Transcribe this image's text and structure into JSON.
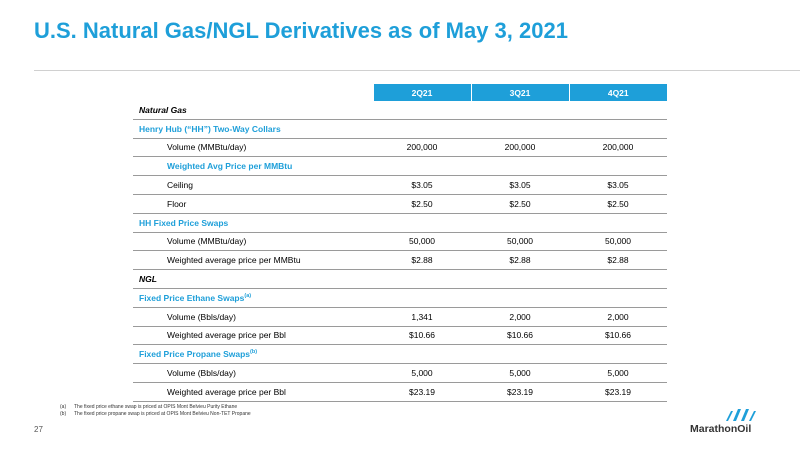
{
  "title": "U.S. Natural Gas/NGL Derivatives as of May 3, 2021",
  "columns": [
    "",
    "2Q21",
    "3Q21",
    "4Q21"
  ],
  "rows": [
    {
      "type": "section",
      "label": "Natural Gas",
      "sup": "",
      "values": [
        "",
        "",
        ""
      ]
    },
    {
      "type": "sub",
      "label": "Henry Hub (“HH”) Two-Way Collars",
      "sup": "",
      "values": [
        "",
        "",
        ""
      ]
    },
    {
      "type": "detail",
      "label": "Volume (MMBtu/day)",
      "sup": "",
      "values": [
        "200,000",
        "200,000",
        "200,000"
      ]
    },
    {
      "type": "subind",
      "label": "Weighted Avg Price per MMBtu",
      "sup": "",
      "values": [
        "",
        "",
        ""
      ]
    },
    {
      "type": "detail",
      "label": "Ceiling",
      "sup": "",
      "values": [
        "$3.05",
        "$3.05",
        "$3.05"
      ]
    },
    {
      "type": "detail",
      "label": "Floor",
      "sup": "",
      "values": [
        "$2.50",
        "$2.50",
        "$2.50"
      ]
    },
    {
      "type": "sub",
      "label": "HH Fixed Price Swaps",
      "sup": "",
      "values": [
        "",
        "",
        ""
      ]
    },
    {
      "type": "detail",
      "label": "Volume (MMBtu/day)",
      "sup": "",
      "values": [
        "50,000",
        "50,000",
        "50,000"
      ]
    },
    {
      "type": "detail",
      "label": "Weighted average price per MMBtu",
      "sup": "",
      "values": [
        "$2.88",
        "$2.88",
        "$2.88"
      ]
    },
    {
      "type": "section",
      "label": "NGL",
      "sup": "",
      "values": [
        "",
        "",
        ""
      ]
    },
    {
      "type": "sub",
      "label": "Fixed Price Ethane Swaps",
      "sup": "(a)",
      "values": [
        "",
        "",
        ""
      ]
    },
    {
      "type": "detail",
      "label": "Volume (Bbls/day)",
      "sup": "",
      "values": [
        "1,341",
        "2,000",
        "2,000"
      ]
    },
    {
      "type": "detail",
      "label": "Weighted average price per Bbl",
      "sup": "",
      "values": [
        "$10.66",
        "$10.66",
        "$10.66"
      ]
    },
    {
      "type": "sub",
      "label": "Fixed Price Propane Swaps",
      "sup": "(b)",
      "values": [
        "",
        "",
        ""
      ]
    },
    {
      "type": "detail",
      "label": "Volume (Bbls/day)",
      "sup": "",
      "values": [
        "5,000",
        "5,000",
        "5,000"
      ]
    },
    {
      "type": "detail",
      "label": "Weighted average price per Bbl",
      "sup": "",
      "values": [
        "$23.19",
        "$23.19",
        "$23.19"
      ]
    }
  ],
  "footnotes": [
    {
      "marker": "(a)",
      "text": "The fixed price ethane swap is priced at OPIS Mont Belvieu Purity Ethane"
    },
    {
      "marker": "(b)",
      "text": "The fixed price propane swap is priced at OPIS Mont Belvieu Non-TET Propane"
    }
  ],
  "page_number": "27",
  "logo_text": "MarathonOil",
  "colors": {
    "accent": "#1e9fd9",
    "rule": "#9a9a9a"
  }
}
